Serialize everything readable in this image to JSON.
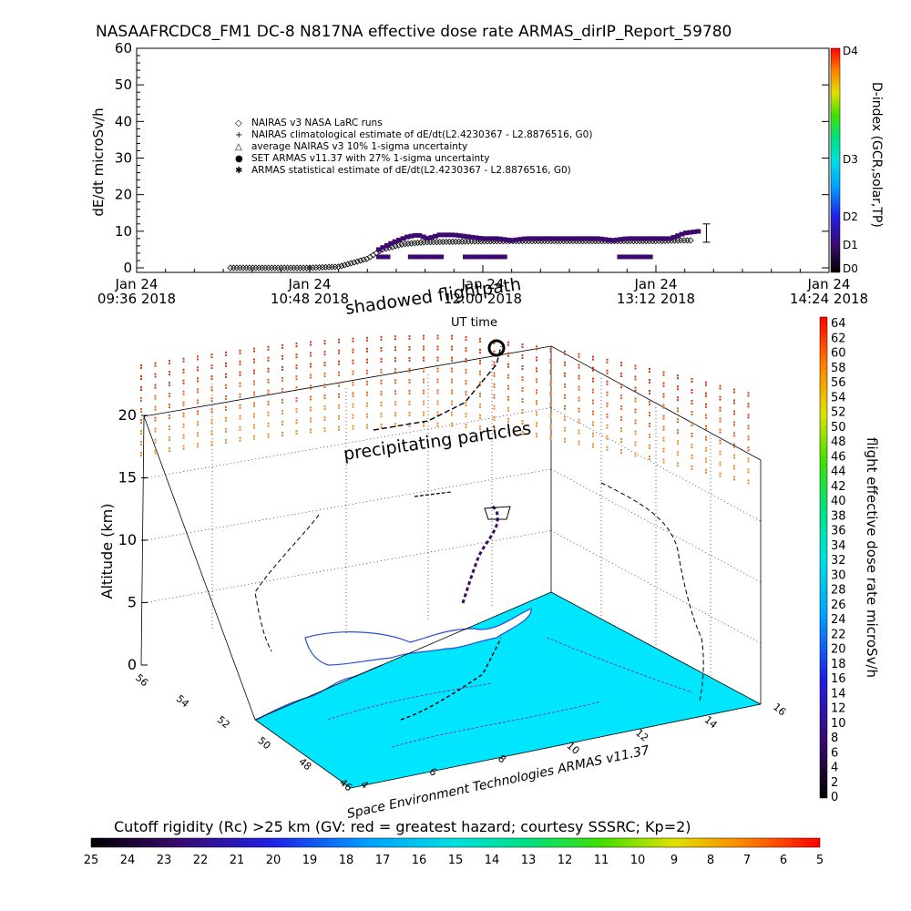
{
  "title": "NASAAFRCDC8_FM1 DC-8    N817NA effective dose rate ARMAS_dirIP_Report_59780",
  "chart_data": [
    {
      "type": "scatter",
      "name": "time series",
      "ylabel": "dE/dt microSv/h",
      "xlabel": "UT time",
      "ylim": [
        0,
        60
      ],
      "yticks": [
        "0",
        "10",
        "20",
        "30",
        "40",
        "50",
        "60"
      ],
      "xticks": [
        {
          "day": "Jan 24",
          "time": "09:36 2018"
        },
        {
          "day": "Jan 24",
          "time": "10:48 2018"
        },
        {
          "day": "Jan 24",
          "time": "12:00 2018"
        },
        {
          "day": "Jan 24",
          "time": "13:12 2018"
        },
        {
          "day": "Jan 24",
          "time": "14:24 2018"
        }
      ],
      "xlim_hours": [
        9.6,
        14.4
      ],
      "legend": [
        {
          "symbol": "◇",
          "label": "NAIRAS v3 NASA LaRC runs"
        },
        {
          "symbol": "+",
          "label": "NAIRAS climatological estimate of dE/dt(L2.4230367 - L2.8876516, G0)"
        },
        {
          "symbol": "△",
          "label": "average NAIRAS v3 10% 1-sigma uncertainty"
        },
        {
          "symbol": "●",
          "label": "SET ARMAS v11.37 with 27% 1-sigma uncertainty"
        },
        {
          "symbol": "✱",
          "label": "ARMAS statistical estimate of dE/dt(L2.4230367 - L2.8876516, G0)"
        }
      ],
      "legend_position": "upper-left",
      "series": [
        {
          "kind": "nairas_diamonds",
          "x_hours": [
            10.25,
            10.8,
            11.0,
            11.2,
            11.3,
            11.45,
            11.6,
            11.9,
            12.2,
            12.6,
            13.0,
            13.2,
            13.4
          ],
          "values": [
            0,
            0,
            0.3,
            2.5,
            5,
            6.5,
            7,
            7.2,
            7.3,
            7.3,
            7.3,
            7.3,
            7.5
          ]
        },
        {
          "kind": "armas_purple",
          "x_hours": [
            11.28,
            11.38,
            11.48,
            11.55,
            11.62,
            11.7,
            11.8,
            11.9,
            12.0,
            12.1,
            12.2,
            12.3,
            12.4,
            12.5,
            12.6,
            12.7,
            12.8,
            12.9,
            13.0,
            13.1,
            13.2,
            13.3,
            13.4,
            13.5
          ],
          "values": [
            5,
            7,
            8.5,
            9,
            8,
            9,
            9,
            8.5,
            8,
            8,
            7.5,
            8,
            8,
            8,
            8,
            8,
            8,
            7.5,
            8,
            8,
            8,
            8,
            9.5,
            10
          ]
        },
        {
          "kind": "armas_low",
          "x_hours": [
            11.3,
            11.5,
            11.6,
            11.8,
            13.0,
            13.2
          ],
          "values": [
            3,
            3,
            3,
            3,
            3,
            3
          ]
        }
      ],
      "errorbar": {
        "x_hours": 13.55,
        "value": 9,
        "low": 7,
        "high": 12
      }
    },
    {
      "type": "colorbar",
      "name": "D-index",
      "label": "D-index (GCR,solar,TP)",
      "ticks": [
        "D0",
        "D1",
        "D2",
        "D3",
        "D4"
      ]
    },
    {
      "type": "scatter",
      "name": "3d flight path",
      "zlabel": "Altitude (km)",
      "zlim": [
        0,
        20
      ],
      "zticks": [
        "0",
        "5",
        "10",
        "15",
        "20"
      ],
      "lat_ticks": [
        "46",
        "48",
        "50",
        "52",
        "54",
        "56"
      ],
      "lon_ticks": [
        "4",
        "6",
        "8",
        "10",
        "12",
        "14",
        "16"
      ],
      "annotations": [
        "shadowed flightpath",
        "precipitating particles"
      ],
      "credit": "Space Environment Technologies ARMAS v11.37"
    },
    {
      "type": "colorbar",
      "name": "dose rate",
      "label": "flight effective dose rate microSv/h",
      "ticks": [
        "0",
        "2",
        "4",
        "6",
        "8",
        "10",
        "12",
        "14",
        "16",
        "18",
        "20",
        "22",
        "24",
        "26",
        "28",
        "30",
        "32",
        "34",
        "36",
        "38",
        "40",
        "42",
        "44",
        "46",
        "48",
        "50",
        "52",
        "54",
        "56",
        "58",
        "60",
        "62",
        "64"
      ]
    },
    {
      "type": "colorbar",
      "name": "cutoff rigidity",
      "label": "Cutoff rigidity (Rc) >25 km (GV: red = greatest hazard; courtesy SSSRC; Kp=2)",
      "ticks": [
        "25",
        "24",
        "23",
        "22",
        "21",
        "20",
        "19",
        "18",
        "17",
        "16",
        "15",
        "14",
        "13",
        "12",
        "11",
        "10",
        "9",
        "8",
        "7",
        "6",
        "5"
      ]
    }
  ],
  "colors": {
    "armas": "#3c0a6e",
    "ground": "#00e6ff",
    "water": "#ffffff",
    "coast": "#2a4fd8",
    "precip": [
      "#d23c14",
      "#e0641e",
      "#ee8a28"
    ],
    "flight": "#111111"
  }
}
